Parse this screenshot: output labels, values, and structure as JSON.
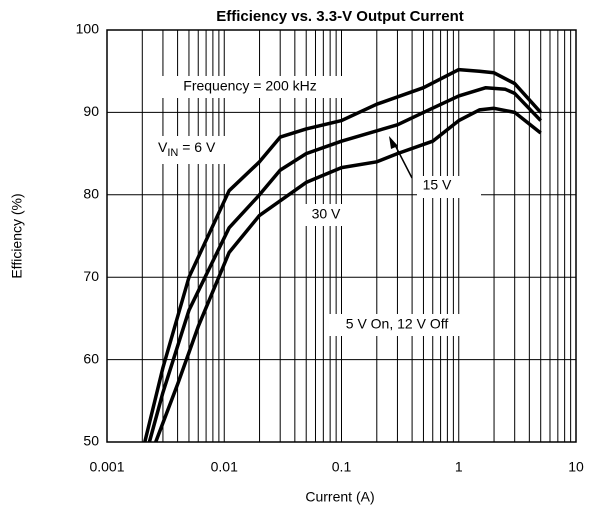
{
  "chart_data": {
    "type": "line",
    "title": "Efficiency vs. 3.3-V Output Current",
    "x_label": "Current (A)",
    "y_label": "Efficiency (%)",
    "log_x": true,
    "xlim": [
      0.001,
      10
    ],
    "xticks": [
      0.001,
      0.01,
      0.1,
      1,
      10
    ],
    "xgrid_minor": [
      0.002,
      0.003,
      0.004,
      0.005,
      0.006,
      0.007,
      0.008,
      0.009,
      0.02,
      0.03,
      0.04,
      0.05,
      0.06,
      0.07,
      0.08,
      0.09,
      0.2,
      0.3,
      0.4,
      0.5,
      0.6,
      0.7,
      0.8,
      0.9,
      2,
      3,
      4,
      5,
      6,
      7,
      8,
      9
    ],
    "ylim": [
      50,
      100
    ],
    "yticks": [
      50,
      60,
      70,
      80,
      90,
      100
    ],
    "grid": true,
    "color": "#000000",
    "series": [
      {
        "x": [
          0.0021,
          0.003,
          0.005,
          0.011,
          0.02,
          0.03,
          0.05,
          0.1,
          0.2,
          0.5,
          1,
          1.5,
          2,
          3,
          5
        ],
        "values": [
          50,
          59,
          70,
          80.5,
          84,
          87,
          88,
          89,
          91,
          93,
          95.2,
          95,
          94.8,
          93.5,
          90
        ]
      },
      {
        "x": [
          0.0023,
          0.003,
          0.005,
          0.011,
          0.02,
          0.03,
          0.05,
          0.1,
          0.3,
          0.5,
          1,
          1.7,
          2.5,
          3,
          5
        ],
        "values": [
          50,
          56,
          66,
          76,
          80,
          83,
          85,
          86.5,
          88.5,
          90,
          92,
          93,
          92.8,
          92.3,
          89
        ]
      },
      {
        "x": [
          0.0026,
          0.004,
          0.006,
          0.011,
          0.02,
          0.05,
          0.1,
          0.2,
          0.3,
          0.6,
          1,
          1.5,
          2,
          3,
          5
        ],
        "values": [
          50,
          57,
          64,
          73,
          77.5,
          81.5,
          83.3,
          84,
          85,
          86.5,
          89,
          90.3,
          90.5,
          90,
          87.5
        ]
      }
    ],
    "annotations": [
      "Frequency = 200 kHz",
      "15 V",
      "30 V",
      "5 V On, 12 V Off"
    ],
    "vin_label": {
      "symbol": "V",
      "subscript": "IN",
      "text": " = 6 V"
    }
  }
}
